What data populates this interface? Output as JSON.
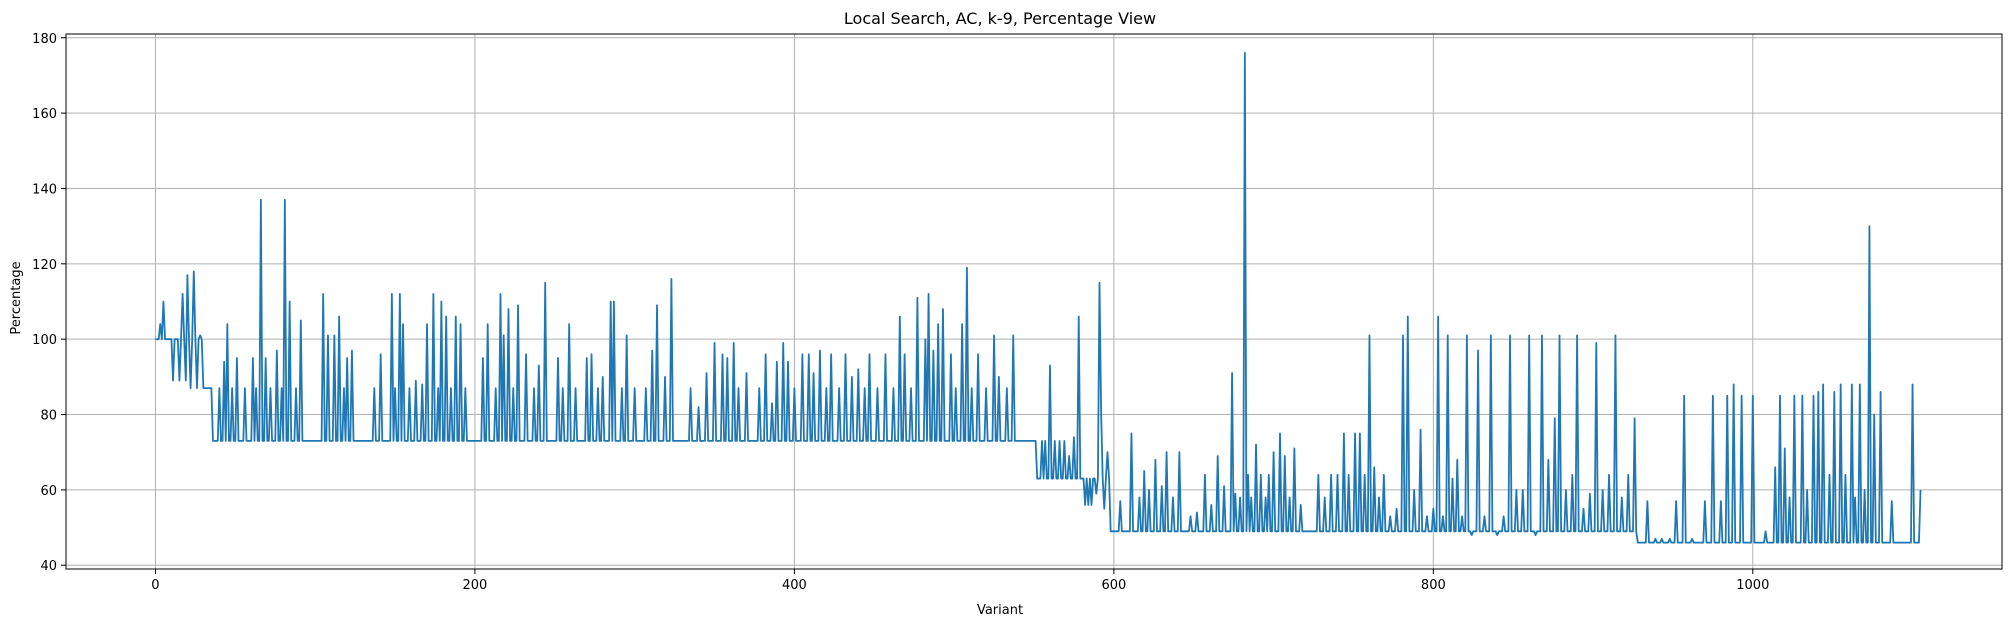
{
  "chart_data": {
    "type": "line",
    "title": "Local Search, AC, k-9, Percentage View",
    "xlabel": "Variant",
    "ylabel": "Percentage",
    "xlim": [
      -56,
      1156
    ],
    "ylim": [
      39,
      181
    ],
    "xticks": [
      0,
      200,
      400,
      600,
      800,
      1000
    ],
    "yticks": [
      40,
      60,
      80,
      100,
      120,
      140,
      160,
      180
    ],
    "grid": true,
    "line_color": "#1f77b4",
    "n_points": 1106,
    "x_start": 0,
    "x_end": 1105,
    "segments": [
      {
        "from": 0,
        "to": 30,
        "base": 100,
        "peaks": [
          [
            3,
            104
          ],
          [
            4,
            100
          ],
          [
            5,
            110
          ],
          [
            8,
            100
          ],
          [
            11,
            89
          ],
          [
            14,
            100
          ],
          [
            15,
            89
          ],
          [
            17,
            112
          ],
          [
            19,
            89
          ],
          [
            20,
            117
          ],
          [
            22,
            87
          ],
          [
            24,
            118
          ],
          [
            26,
            87
          ],
          [
            28,
            101
          ],
          [
            30,
            87
          ]
        ]
      },
      {
        "from": 30,
        "to": 36,
        "base": 87,
        "peaks": []
      },
      {
        "from": 36,
        "to": 552,
        "base": 73,
        "peaks": [
          [
            40,
            87
          ],
          [
            43,
            94
          ],
          [
            45,
            104
          ],
          [
            48,
            87
          ],
          [
            51,
            95
          ],
          [
            56,
            87
          ],
          [
            61,
            95
          ],
          [
            63,
            87
          ],
          [
            66,
            137
          ],
          [
            69,
            95
          ],
          [
            72,
            87
          ],
          [
            76,
            97
          ],
          [
            79,
            87
          ],
          [
            81,
            137
          ],
          [
            84,
            110
          ],
          [
            88,
            87
          ],
          [
            91,
            105
          ],
          [
            105,
            112
          ],
          [
            108,
            101
          ],
          [
            112,
            101
          ],
          [
            115,
            106
          ],
          [
            118,
            87
          ],
          [
            120,
            95
          ],
          [
            123,
            97
          ],
          [
            137,
            87
          ],
          [
            141,
            96
          ],
          [
            148,
            112
          ],
          [
            150,
            87
          ],
          [
            153,
            112
          ],
          [
            155,
            104
          ],
          [
            159,
            87
          ],
          [
            163,
            89
          ],
          [
            167,
            88
          ],
          [
            170,
            104
          ],
          [
            174,
            112
          ],
          [
            177,
            87
          ],
          [
            179,
            110
          ],
          [
            182,
            106
          ],
          [
            185,
            87
          ],
          [
            188,
            106
          ],
          [
            191,
            104
          ],
          [
            194,
            87
          ],
          [
            205,
            95
          ],
          [
            208,
            104
          ],
          [
            213,
            87
          ],
          [
            216,
            112
          ],
          [
            218,
            101
          ],
          [
            221,
            108
          ],
          [
            224,
            87
          ],
          [
            227,
            109
          ],
          [
            232,
            96
          ],
          [
            237,
            87
          ],
          [
            240,
            93
          ],
          [
            244,
            115
          ],
          [
            252,
            95
          ],
          [
            255,
            87
          ],
          [
            259,
            104
          ],
          [
            263,
            87
          ],
          [
            270,
            95
          ],
          [
            273,
            96
          ],
          [
            277,
            87
          ],
          [
            280,
            90
          ],
          [
            285,
            110
          ],
          [
            287,
            110
          ],
          [
            292,
            87
          ],
          [
            295,
            101
          ],
          [
            300,
            87
          ],
          [
            307,
            87
          ],
          [
            311,
            97
          ],
          [
            314,
            109
          ],
          [
            319,
            90
          ],
          [
            323,
            116
          ],
          [
            335,
            87
          ],
          [
            340,
            82
          ],
          [
            345,
            91
          ],
          [
            350,
            99
          ],
          [
            355,
            96
          ],
          [
            358,
            95
          ],
          [
            362,
            99
          ],
          [
            365,
            87
          ],
          [
            370,
            91
          ],
          [
            378,
            87
          ],
          [
            382,
            96
          ],
          [
            386,
            83
          ],
          [
            389,
            94
          ],
          [
            393,
            99
          ],
          [
            396,
            94
          ],
          [
            400,
            87
          ],
          [
            405,
            96
          ],
          [
            409,
            96
          ],
          [
            412,
            91
          ],
          [
            416,
            97
          ],
          [
            420,
            87
          ],
          [
            423,
            96
          ],
          [
            428,
            87
          ],
          [
            432,
            96
          ],
          [
            436,
            90
          ],
          [
            440,
            92
          ],
          [
            444,
            87
          ],
          [
            447,
            96
          ],
          [
            452,
            87
          ],
          [
            457,
            96
          ],
          [
            462,
            87
          ],
          [
            466,
            106
          ],
          [
            469,
            96
          ],
          [
            473,
            87
          ],
          [
            477,
            111
          ],
          [
            482,
            100
          ],
          [
            484,
            112
          ],
          [
            487,
            97
          ],
          [
            490,
            104
          ],
          [
            493,
            108
          ],
          [
            498,
            96
          ],
          [
            501,
            87
          ],
          [
            505,
            104
          ],
          [
            508,
            119
          ],
          [
            511,
            87
          ],
          [
            515,
            96
          ],
          [
            520,
            87
          ],
          [
            525,
            101
          ],
          [
            528,
            90
          ],
          [
            533,
            87
          ],
          [
            537,
            101
          ]
        ]
      },
      {
        "from": 552,
        "to": 598,
        "base": 63,
        "peaks": [
          [
            555,
            73
          ],
          [
            557,
            73
          ],
          [
            560,
            93
          ],
          [
            563,
            73
          ],
          [
            566,
            73
          ],
          [
            569,
            73
          ],
          [
            572,
            69
          ],
          [
            575,
            74
          ],
          [
            578,
            106
          ],
          [
            582,
            56
          ],
          [
            584,
            56
          ],
          [
            586,
            56
          ],
          [
            589,
            59
          ],
          [
            591,
            115
          ],
          [
            592,
            81
          ],
          [
            594,
            55
          ],
          [
            596,
            70
          ]
        ]
      },
      {
        "from": 598,
        "to": 1106,
        "base": 49,
        "peaks": [
          [
            604,
            57
          ],
          [
            611,
            75
          ],
          [
            616,
            58
          ],
          [
            619,
            65
          ],
          [
            622,
            60
          ],
          [
            626,
            68
          ],
          [
            630,
            61
          ],
          [
            633,
            70
          ],
          [
            637,
            58
          ],
          [
            641,
            70
          ],
          [
            648,
            53
          ],
          [
            652,
            54
          ],
          [
            657,
            64
          ],
          [
            661,
            56
          ],
          [
            665,
            69
          ],
          [
            669,
            61
          ],
          [
            674,
            91
          ],
          [
            676,
            59
          ],
          [
            679,
            58
          ],
          [
            682,
            176
          ],
          [
            684,
            64
          ],
          [
            686,
            58
          ],
          [
            689,
            72
          ],
          [
            692,
            64
          ],
          [
            695,
            58
          ],
          [
            697,
            64
          ],
          [
            700,
            70
          ],
          [
            704,
            75
          ],
          [
            707,
            69
          ],
          [
            710,
            58
          ],
          [
            713,
            71
          ],
          [
            717,
            56
          ],
          [
            723,
            49
          ],
          [
            728,
            64
          ],
          [
            732,
            58
          ],
          [
            736,
            64
          ],
          [
            740,
            64
          ],
          [
            744,
            75
          ],
          [
            747,
            64
          ],
          [
            751,
            75
          ],
          [
            754,
            75
          ],
          [
            757,
            64
          ],
          [
            760,
            101
          ],
          [
            763,
            66
          ],
          [
            766,
            58
          ],
          [
            769,
            64
          ],
          [
            773,
            53
          ],
          [
            777,
            55
          ],
          [
            781,
            101
          ],
          [
            784,
            106
          ],
          [
            788,
            60
          ],
          [
            792,
            76
          ],
          [
            796,
            53
          ],
          [
            800,
            55
          ],
          [
            803,
            106
          ],
          [
            806,
            53
          ],
          [
            809,
            101
          ],
          [
            812,
            63
          ],
          [
            815,
            68
          ],
          [
            818,
            53
          ],
          [
            821,
            101
          ],
          [
            824,
            48
          ],
          [
            828,
            97
          ],
          [
            832,
            53
          ],
          [
            836,
            101
          ],
          [
            840,
            48
          ],
          [
            844,
            53
          ],
          [
            848,
            101
          ],
          [
            852,
            60
          ],
          [
            856,
            60
          ],
          [
            860,
            101
          ],
          [
            864,
            48
          ],
          [
            868,
            101
          ],
          [
            872,
            68
          ],
          [
            876,
            79
          ],
          [
            879,
            101
          ],
          [
            883,
            60
          ],
          [
            887,
            64
          ],
          [
            890,
            101
          ],
          [
            894,
            55
          ],
          [
            898,
            59
          ],
          [
            902,
            99
          ],
          [
            906,
            60
          ],
          [
            910,
            64
          ],
          [
            914,
            101
          ],
          [
            918,
            58
          ],
          [
            922,
            64
          ],
          [
            926,
            79
          ]
        ]
      },
      {
        "from": 928,
        "to": 1106,
        "base": 46,
        "peaks": [
          [
            934,
            57
          ],
          [
            939,
            47
          ],
          [
            943,
            47
          ],
          [
            948,
            47
          ],
          [
            952,
            57
          ],
          [
            957,
            85
          ],
          [
            962,
            47
          ],
          [
            970,
            57
          ],
          [
            975,
            85
          ],
          [
            980,
            57
          ],
          [
            984,
            85
          ],
          [
            988,
            88
          ],
          [
            993,
            85
          ],
          [
            1000,
            85
          ],
          [
            1008,
            49
          ],
          [
            1014,
            66
          ],
          [
            1017,
            85
          ],
          [
            1020,
            71
          ],
          [
            1023,
            58
          ],
          [
            1026,
            85
          ],
          [
            1031,
            85
          ],
          [
            1034,
            60
          ],
          [
            1038,
            85
          ],
          [
            1041,
            86
          ],
          [
            1044,
            88
          ],
          [
            1048,
            64
          ],
          [
            1051,
            86
          ],
          [
            1055,
            88
          ],
          [
            1058,
            64
          ],
          [
            1062,
            88
          ],
          [
            1064,
            58
          ],
          [
            1067,
            88
          ],
          [
            1070,
            60
          ],
          [
            1073,
            130
          ],
          [
            1076,
            80
          ],
          [
            1080,
            86
          ],
          [
            1087,
            57
          ],
          [
            1100,
            88
          ],
          [
            1105,
            60
          ]
        ]
      }
    ]
  }
}
